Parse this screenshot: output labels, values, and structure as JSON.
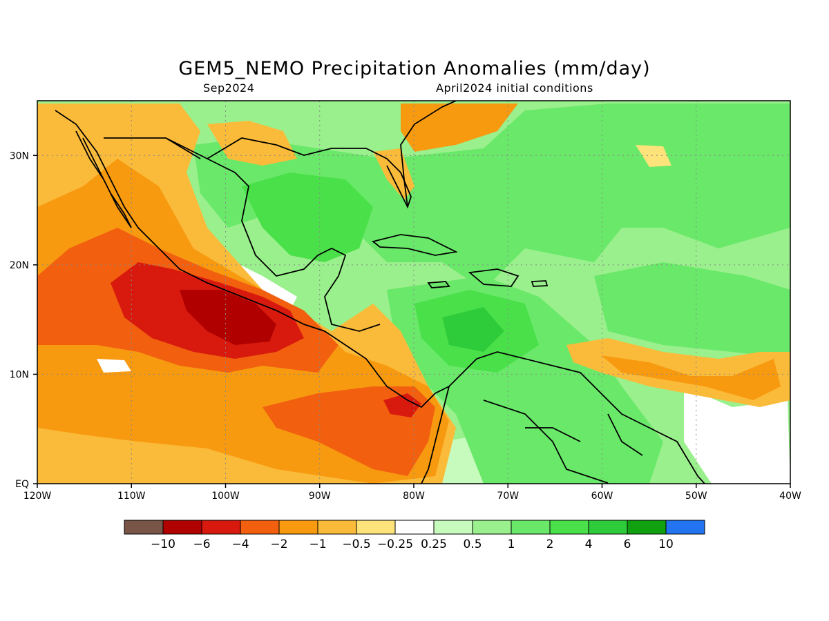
{
  "title": "GEM5_NEMO Precipitation Anomalies (mm/day)",
  "subtitle_left": "Sep2024",
  "subtitle_right": "April2024 initial conditions",
  "map": {
    "lon_range": [
      -120,
      -40
    ],
    "lat_range": [
      0,
      35
    ],
    "x_ticks": [
      {
        "lon": -120,
        "label": "120W"
      },
      {
        "lon": -110,
        "label": "110W"
      },
      {
        "lon": -100,
        "label": "100W"
      },
      {
        "lon": -90,
        "label": "90W"
      },
      {
        "lon": -80,
        "label": "80W"
      },
      {
        "lon": -70,
        "label": "70W"
      },
      {
        "lon": -60,
        "label": "60W"
      },
      {
        "lon": -50,
        "label": "50W"
      },
      {
        "lon": -40,
        "label": "40W"
      }
    ],
    "y_ticks": [
      {
        "lat": 0,
        "label": "EQ"
      },
      {
        "lat": 10,
        "label": "10N"
      },
      {
        "lat": 20,
        "label": "20N"
      },
      {
        "lat": 30,
        "label": "30N"
      }
    ]
  },
  "colorbar": {
    "colors": [
      "#795548",
      "#b00000",
      "#d81a0e",
      "#f2600f",
      "#f79a10",
      "#fbbb3a",
      "#fde37a",
      "#ffffff",
      "#c7fbbd",
      "#9af08c",
      "#6ae86a",
      "#4ae04a",
      "#2ecc3a",
      "#10a010",
      "#2274f0"
    ],
    "labels": [
      "−10",
      "−6",
      "−4",
      "−2",
      "−1",
      "−0.5",
      "−0.25",
      "0.25",
      "0.5",
      "1",
      "2",
      "4",
      "6",
      "10"
    ]
  }
}
